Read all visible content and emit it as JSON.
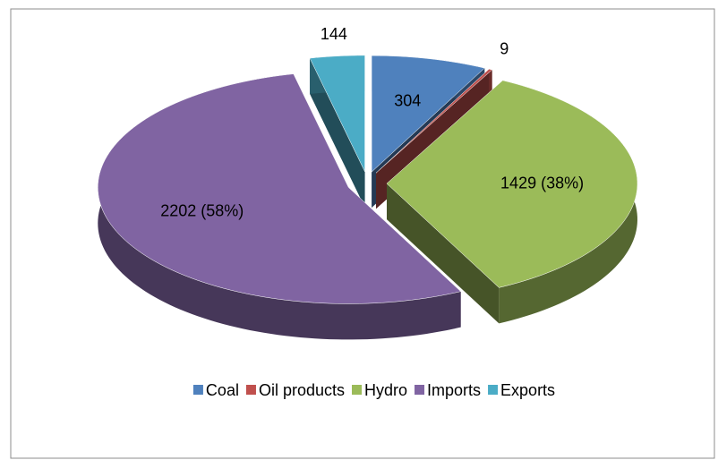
{
  "chart_data": {
    "type": "pie",
    "categories": [
      "Coal",
      "Oil products",
      "Hydro",
      "Imports",
      "Exports"
    ],
    "values": [
      304,
      9,
      1429,
      2202,
      144
    ],
    "value_labels": [
      "304",
      "9",
      "1429 (38%)",
      "2202  (58%)",
      "144"
    ],
    "colors": [
      "#4f81bd",
      "#c0504d",
      "#9bbb59",
      "#8064a2",
      "#4bacc6"
    ],
    "legend": "bottom"
  }
}
